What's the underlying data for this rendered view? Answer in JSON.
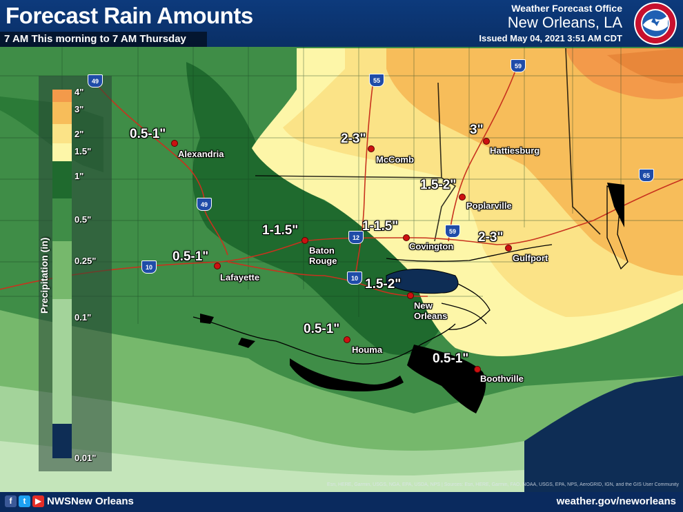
{
  "header": {
    "title": "Forecast Rain Amounts",
    "subtitle": "7 AM This morning to 7 AM Thursday",
    "office": "Weather Forecast Office",
    "city": "New Orleans, LA",
    "issued": "Issued May 04, 2021 3:51 AM CDT",
    "logo_text": "NATIONAL WEATHER SERVICE"
  },
  "legend": {
    "title": "Precipitation (in)",
    "ticks": [
      "4\"",
      "3\"",
      "2\"",
      "1.5\"",
      "1\"",
      "0.5\"",
      "0.25\"",
      "0.1\"",
      "0.01\""
    ],
    "colors": [
      "#f39a4a",
      "#f7bd5a",
      "#fbe387",
      "#fdf6a8",
      "#1f6a2e",
      "#3f8d47",
      "#76b86c",
      "#a3d39a",
      "#c4e5ba"
    ]
  },
  "labels": {
    "alexandria_amt": "0.5-1\"",
    "alexandria": "Alexandria",
    "mccomb_amt": "2-3\"",
    "mccomb": "McComb",
    "hattiesburg_amt": "3\"",
    "hattiesburg": "Hattiesburg",
    "poplarville_amt": "1.5-2\"",
    "poplarville": "Poplarville",
    "baton_rouge_amt": "1-1.5\"",
    "baton_rouge": "Baton\nRouge",
    "covington_amt": "1-1.5\"",
    "covington": "Covington",
    "gulfport_amt": "2-3\"",
    "gulfport": "Gulfport",
    "lafayette_amt": "0.5-1\"",
    "lafayette": "Lafayette",
    "new_orleans_amt": "1.5-2\"",
    "new_orleans": "New\nOrleans",
    "houma_amt": "0.5-1\"",
    "houma": "Houma",
    "boothville_amt": "0.5-1\"",
    "boothville": "Boothville"
  },
  "interstates": {
    "i49_north": "49",
    "i49_south": "49",
    "i55": "55",
    "i59_north": "59",
    "i59_south": "59",
    "i65": "65",
    "i10_west": "10",
    "i12": "12",
    "i10_east": "10"
  },
  "footer": {
    "handle": "NWSNew Orleans",
    "website": "weather.gov/neworleans",
    "attribution": "Esri, HERE, Garmin, USGS, NGA, EPA, USDA, NPS | Sources: Esri, HERE, Garmin, FAO, NOAA, USGS, EPA, NPS, AeroGRID, IGN, and the GIS User Community"
  },
  "colors": {
    "header": "#0d3a7c",
    "gulf_water": "#0e2d55",
    "city_dot": "#cc1111"
  }
}
